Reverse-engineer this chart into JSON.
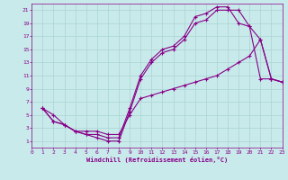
{
  "xlabel": "Windchill (Refroidissement éolien,°C)",
  "bg_color": "#c8eaea",
  "grid_color": "#aad4d4",
  "line_color": "#880088",
  "xlim": [
    0,
    23
  ],
  "ylim": [
    0,
    22
  ],
  "xticks": [
    0,
    1,
    2,
    3,
    4,
    5,
    6,
    7,
    8,
    9,
    10,
    11,
    12,
    13,
    14,
    15,
    16,
    17,
    18,
    19,
    20,
    21,
    22,
    23
  ],
  "yticks": [
    1,
    3,
    5,
    7,
    9,
    11,
    13,
    15,
    17,
    19,
    21
  ],
  "curve1_x": [
    1,
    2,
    3,
    4,
    5,
    6,
    7,
    8,
    9,
    10,
    11,
    12,
    13,
    14,
    15,
    16,
    17,
    18,
    19,
    20,
    21,
    22,
    23
  ],
  "curve1_y": [
    6,
    4,
    3.5,
    2.5,
    2,
    1.5,
    1,
    1,
    5.5,
    10.5,
    13,
    14.5,
    15,
    16.5,
    19,
    19.5,
    21,
    21,
    21,
    18.5,
    16.5,
    10.5,
    10
  ],
  "curve2_x": [
    1,
    2,
    3,
    4,
    5,
    6,
    7,
    8,
    9,
    10,
    11,
    12,
    13,
    14,
    15,
    16,
    17,
    18,
    19,
    20,
    21,
    22,
    23
  ],
  "curve2_y": [
    6,
    4,
    3.5,
    2.5,
    2,
    2,
    1.5,
    1.5,
    6,
    11,
    13.5,
    15,
    15.5,
    17,
    20,
    20.5,
    21.5,
    21.5,
    19,
    18.5,
    10.5,
    10.5,
    10
  ],
  "curve3_x": [
    1,
    2,
    3,
    4,
    5,
    6,
    7,
    8,
    9,
    10,
    11,
    12,
    13,
    14,
    15,
    16,
    17,
    18,
    19,
    20,
    21,
    22,
    23
  ],
  "curve3_y": [
    6,
    5,
    3.5,
    2.5,
    2.5,
    2.5,
    2,
    2,
    5,
    7.5,
    8,
    8.5,
    9,
    9.5,
    10,
    10.5,
    11,
    12,
    13,
    14,
    16.5,
    10.5,
    10
  ]
}
